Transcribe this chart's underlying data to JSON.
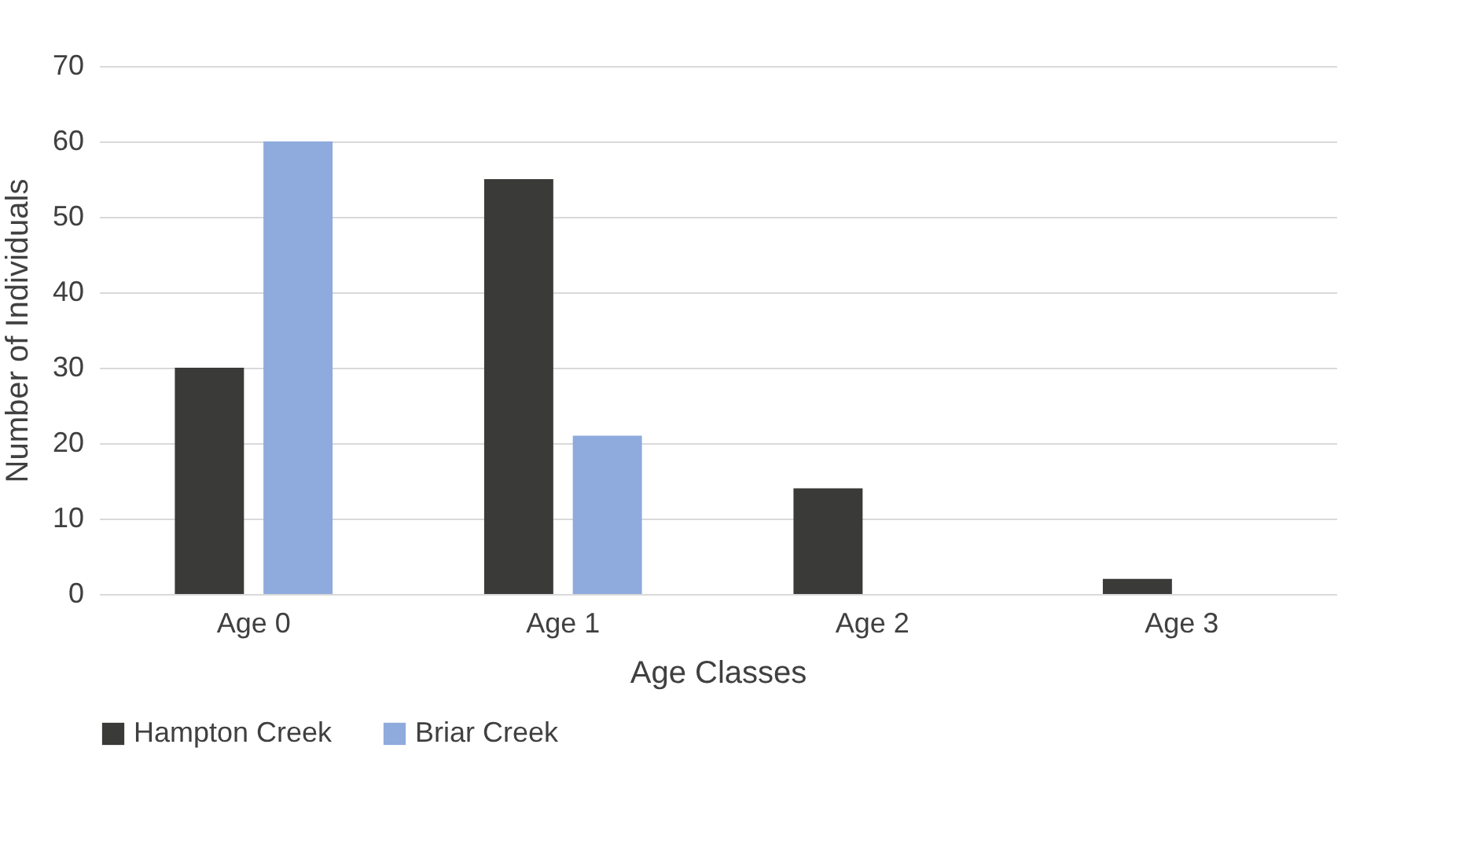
{
  "chart_data": {
    "type": "bar",
    "xlabel": "Age Classes",
    "ylabel": "Number of Individuals",
    "categories": [
      "Age 0",
      "Age 1",
      "Age 2",
      "Age 3"
    ],
    "series": [
      {
        "name": "Hampton Creek",
        "color": "#3a3a38",
        "values": [
          30,
          55,
          14,
          2
        ]
      },
      {
        "name": "Briar Creek",
        "color": "#8faadc",
        "values": [
          60,
          21,
          0,
          0
        ]
      }
    ],
    "ylim": [
      0,
      70
    ],
    "yticks": [
      0,
      10,
      20,
      30,
      40,
      50,
      60,
      70
    ],
    "grid": "y",
    "legend": "bottom"
  }
}
